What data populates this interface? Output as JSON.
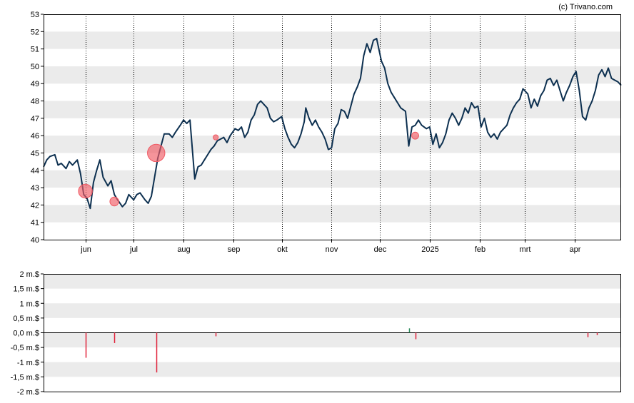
{
  "credit": "(c) Trivano.com",
  "colors": {
    "band": "#ebebeb",
    "price_line": "#0d3050",
    "marker": "#f05a64",
    "negative_bar": "#e0223a",
    "positive_bar": "#2a8a5a",
    "grid_dotted": "#000000",
    "axis": "#000000"
  },
  "chart_data": [
    {
      "type": "line",
      "title": "",
      "xlabel": "",
      "ylabel": "",
      "ylim": [
        40,
        53
      ],
      "yticks": [
        "40",
        "41",
        "42",
        "43",
        "44",
        "45",
        "46",
        "47",
        "48",
        "49",
        "50",
        "51",
        "52",
        "53"
      ],
      "xtick_labels": [
        "jun",
        "jul",
        "aug",
        "sep",
        "okt",
        "nov",
        "dec",
        "2025",
        "feb",
        "mrt",
        "apr"
      ],
      "x_range": [
        "2024-05-06",
        "2025-04-30"
      ],
      "xtick_dates": [
        "2024-06-01",
        "2024-07-01",
        "2024-08-01",
        "2024-09-01",
        "2024-10-01",
        "2024-11-01",
        "2024-12-01",
        "2025-01-01",
        "2025-02-01",
        "2025-03-01",
        "2025-04-01"
      ],
      "grid": "dotted vertical at month ticks, alternating horizontal bands",
      "series": [
        {
          "points": [
            [
              "2024-05-06",
              44.2
            ],
            [
              "2024-05-08",
              44.6
            ],
            [
              "2024-05-10",
              44.8
            ],
            [
              "2024-05-13",
              44.9
            ],
            [
              "2024-05-15",
              44.3
            ],
            [
              "2024-05-17",
              44.4
            ],
            [
              "2024-05-20",
              44.1
            ],
            [
              "2024-05-22",
              44.5
            ],
            [
              "2024-05-24",
              44.3
            ],
            [
              "2024-05-27",
              44.6
            ],
            [
              "2024-05-29",
              43.8
            ],
            [
              "2024-05-31",
              42.6
            ],
            [
              "2024-06-02",
              42.4
            ],
            [
              "2024-06-04",
              41.8
            ],
            [
              "2024-06-06",
              43.3
            ],
            [
              "2024-06-08",
              44.0
            ],
            [
              "2024-06-10",
              44.6
            ],
            [
              "2024-06-12",
              43.6
            ],
            [
              "2024-06-15",
              43.1
            ],
            [
              "2024-06-17",
              43.4
            ],
            [
              "2024-06-19",
              42.6
            ],
            [
              "2024-06-21",
              42.3
            ],
            [
              "2024-06-24",
              41.9
            ],
            [
              "2024-06-26",
              42.1
            ],
            [
              "2024-06-28",
              42.6
            ],
            [
              "2024-07-01",
              42.3
            ],
            [
              "2024-07-03",
              42.6
            ],
            [
              "2024-07-05",
              42.7
            ],
            [
              "2024-07-08",
              42.3
            ],
            [
              "2024-07-10",
              42.1
            ],
            [
              "2024-07-12",
              42.5
            ],
            [
              "2024-07-14",
              43.6
            ],
            [
              "2024-07-16",
              44.7
            ],
            [
              "2024-07-18",
              45.4
            ],
            [
              "2024-07-20",
              46.1
            ],
            [
              "2024-07-23",
              46.1
            ],
            [
              "2024-07-25",
              45.9
            ],
            [
              "2024-07-27",
              46.2
            ],
            [
              "2024-07-30",
              46.6
            ],
            [
              "2024-08-01",
              46.9
            ],
            [
              "2024-08-03",
              46.7
            ],
            [
              "2024-08-05",
              46.9
            ],
            [
              "2024-08-07",
              44.6
            ],
            [
              "2024-08-08",
              43.5
            ],
            [
              "2024-08-10",
              44.2
            ],
            [
              "2024-08-12",
              44.3
            ],
            [
              "2024-08-14",
              44.6
            ],
            [
              "2024-08-16",
              44.9
            ],
            [
              "2024-08-18",
              45.2
            ],
            [
              "2024-08-20",
              45.4
            ],
            [
              "2024-08-22",
              45.7
            ],
            [
              "2024-08-26",
              45.9
            ],
            [
              "2024-08-28",
              45.6
            ],
            [
              "2024-08-30",
              46.0
            ],
            [
              "2024-09-02",
              46.4
            ],
            [
              "2024-09-04",
              46.3
            ],
            [
              "2024-09-06",
              46.5
            ],
            [
              "2024-09-08",
              45.9
            ],
            [
              "2024-09-10",
              46.2
            ],
            [
              "2024-09-12",
              46.9
            ],
            [
              "2024-09-14",
              47.2
            ],
            [
              "2024-09-16",
              47.8
            ],
            [
              "2024-09-18",
              48.0
            ],
            [
              "2024-09-20",
              47.8
            ],
            [
              "2024-09-22",
              47.6
            ],
            [
              "2024-09-24",
              47.0
            ],
            [
              "2024-09-26",
              46.8
            ],
            [
              "2024-09-28",
              46.9
            ],
            [
              "2024-10-01",
              47.1
            ],
            [
              "2024-10-03",
              46.4
            ],
            [
              "2024-10-05",
              45.9
            ],
            [
              "2024-10-07",
              45.5
            ],
            [
              "2024-10-09",
              45.3
            ],
            [
              "2024-10-11",
              45.6
            ],
            [
              "2024-10-13",
              46.1
            ],
            [
              "2024-10-15",
              46.8
            ],
            [
              "2024-10-16",
              47.6
            ],
            [
              "2024-10-18",
              47.0
            ],
            [
              "2024-10-20",
              46.6
            ],
            [
              "2024-10-22",
              46.9
            ],
            [
              "2024-10-24",
              46.5
            ],
            [
              "2024-10-26",
              46.2
            ],
            [
              "2024-10-28",
              45.8
            ],
            [
              "2024-10-30",
              45.2
            ],
            [
              "2024-11-01",
              45.3
            ],
            [
              "2024-11-03",
              46.4
            ],
            [
              "2024-11-05",
              46.7
            ],
            [
              "2024-11-07",
              47.5
            ],
            [
              "2024-11-09",
              47.4
            ],
            [
              "2024-11-11",
              47.0
            ],
            [
              "2024-11-13",
              47.7
            ],
            [
              "2024-11-15",
              48.4
            ],
            [
              "2024-11-17",
              48.8
            ],
            [
              "2024-11-19",
              49.3
            ],
            [
              "2024-11-21",
              50.6
            ],
            [
              "2024-11-23",
              51.3
            ],
            [
              "2024-11-25",
              50.8
            ],
            [
              "2024-11-27",
              51.5
            ],
            [
              "2024-11-29",
              51.6
            ],
            [
              "2024-12-02",
              50.3
            ],
            [
              "2024-12-04",
              49.9
            ],
            [
              "2024-12-06",
              49.0
            ],
            [
              "2024-12-08",
              48.5
            ],
            [
              "2024-12-10",
              48.2
            ],
            [
              "2024-12-12",
              47.9
            ],
            [
              "2024-12-14",
              47.6
            ],
            [
              "2024-12-17",
              47.4
            ],
            [
              "2024-12-19",
              45.4
            ],
            [
              "2024-12-21",
              46.5
            ],
            [
              "2024-12-23",
              46.6
            ],
            [
              "2024-12-25",
              46.9
            ],
            [
              "2024-12-27",
              46.6
            ],
            [
              "2024-12-30",
              46.4
            ],
            [
              "2025-01-01",
              46.5
            ],
            [
              "2025-01-03",
              45.5
            ],
            [
              "2025-01-05",
              46.1
            ],
            [
              "2025-01-07",
              45.3
            ],
            [
              "2025-01-09",
              45.6
            ],
            [
              "2025-01-11",
              46.1
            ],
            [
              "2025-01-13",
              46.9
            ],
            [
              "2025-01-15",
              47.3
            ],
            [
              "2025-01-17",
              47.0
            ],
            [
              "2025-01-19",
              46.6
            ],
            [
              "2025-01-21",
              47.0
            ],
            [
              "2025-01-23",
              47.6
            ],
            [
              "2025-01-25",
              47.3
            ],
            [
              "2025-01-27",
              47.9
            ],
            [
              "2025-01-29",
              47.6
            ],
            [
              "2025-01-31",
              47.7
            ],
            [
              "2025-02-02",
              46.5
            ],
            [
              "2025-02-04",
              47.0
            ],
            [
              "2025-02-06",
              46.2
            ],
            [
              "2025-02-08",
              45.9
            ],
            [
              "2025-02-10",
              46.1
            ],
            [
              "2025-02-12",
              45.8
            ],
            [
              "2025-02-14",
              46.2
            ],
            [
              "2025-02-16",
              46.4
            ],
            [
              "2025-02-18",
              46.6
            ],
            [
              "2025-02-20",
              47.2
            ],
            [
              "2025-02-22",
              47.6
            ],
            [
              "2025-02-24",
              47.9
            ],
            [
              "2025-02-26",
              48.1
            ],
            [
              "2025-02-28",
              48.7
            ],
            [
              "2025-03-03",
              48.4
            ],
            [
              "2025-03-05",
              47.6
            ],
            [
              "2025-03-07",
              48.1
            ],
            [
              "2025-03-09",
              47.7
            ],
            [
              "2025-03-11",
              48.3
            ],
            [
              "2025-03-13",
              48.6
            ],
            [
              "2025-03-15",
              49.2
            ],
            [
              "2025-03-17",
              49.3
            ],
            [
              "2025-03-19",
              48.9
            ],
            [
              "2025-03-21",
              49.2
            ],
            [
              "2025-03-23",
              48.6
            ],
            [
              "2025-03-25",
              48.0
            ],
            [
              "2025-03-27",
              48.5
            ],
            [
              "2025-03-29",
              48.9
            ],
            [
              "2025-03-31",
              49.4
            ],
            [
              "2025-04-02",
              49.7
            ],
            [
              "2025-04-04",
              48.6
            ],
            [
              "2025-04-06",
              47.1
            ],
            [
              "2025-04-08",
              46.9
            ],
            [
              "2025-04-10",
              47.6
            ],
            [
              "2025-04-12",
              48.0
            ],
            [
              "2025-04-14",
              48.6
            ],
            [
              "2025-04-16",
              49.5
            ],
            [
              "2025-04-18",
              49.8
            ],
            [
              "2025-04-20",
              49.4
            ],
            [
              "2025-04-22",
              49.9
            ],
            [
              "2025-04-24",
              49.3
            ],
            [
              "2025-04-26",
              49.2
            ],
            [
              "2025-04-28",
              49.1
            ],
            [
              "2025-04-30",
              48.9
            ]
          ]
        }
      ],
      "markers": [
        {
          "date": "2024-06-01",
          "value": 42.8,
          "amount": -0.85
        },
        {
          "date": "2024-06-19",
          "value": 42.2,
          "amount": -0.35
        },
        {
          "date": "2024-07-15",
          "value": 45.0,
          "amount": -1.35
        },
        {
          "date": "2024-08-21",
          "value": 45.9,
          "amount": -0.12
        },
        {
          "date": "2024-12-23",
          "value": 46.0,
          "amount": -0.22
        }
      ]
    },
    {
      "type": "bar",
      "title": "",
      "xlabel": "",
      "ylabel": "",
      "ylim": [
        -2,
        2
      ],
      "yticks": [
        "-2 m.$",
        "-1,5 m.$",
        "-1 m.$",
        "-0,5 m.$",
        "0,0 m.$",
        "0,5 m.$",
        "1 m.$",
        "1,5 m.$",
        "2 m.$"
      ],
      "bars": [
        {
          "date": "2024-06-01",
          "value": -0.85
        },
        {
          "date": "2024-06-19",
          "value": -0.35
        },
        {
          "date": "2024-07-15",
          "value": -1.35
        },
        {
          "date": "2024-08-21",
          "value": -0.12
        },
        {
          "date": "2024-12-19",
          "value": 0.15
        },
        {
          "date": "2024-12-23",
          "value": -0.22
        },
        {
          "date": "2025-04-09",
          "value": -0.15
        },
        {
          "date": "2025-04-15",
          "value": -0.08
        }
      ]
    }
  ]
}
